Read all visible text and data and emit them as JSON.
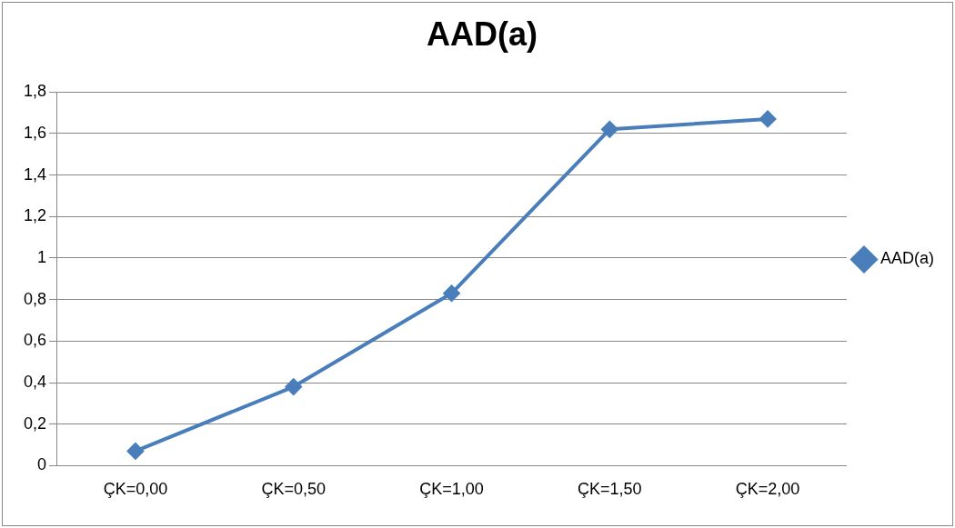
{
  "chart_data": {
    "type": "line",
    "title": "AAD(a)",
    "categories": [
      "ÇK=0,00",
      "ÇK=0,50",
      "ÇK=1,00",
      "ÇK=1,50",
      "ÇK=2,00"
    ],
    "series": [
      {
        "name": "AAD(a)",
        "color": "#4a7ebb",
        "values": [
          0.07,
          0.38,
          0.83,
          1.62,
          1.67
        ]
      }
    ],
    "ylim": [
      0,
      1.8
    ],
    "yticks": [
      0,
      {
        "value": 0.2,
        "label": "0,2"
      },
      {
        "value": 0.4,
        "label": "0,4"
      },
      {
        "value": 0.6,
        "label": "0,6"
      },
      {
        "value": 0.8,
        "label": "0,8"
      },
      1,
      {
        "value": 1.2,
        "label": "1,2"
      },
      {
        "value": 1.4,
        "label": "1,4"
      },
      {
        "value": 1.6,
        "label": "1,6"
      },
      {
        "value": 1.8,
        "label": "1,8"
      }
    ],
    "grid": "y",
    "legend": "right",
    "marker": "diamond",
    "line_style": "solid"
  }
}
